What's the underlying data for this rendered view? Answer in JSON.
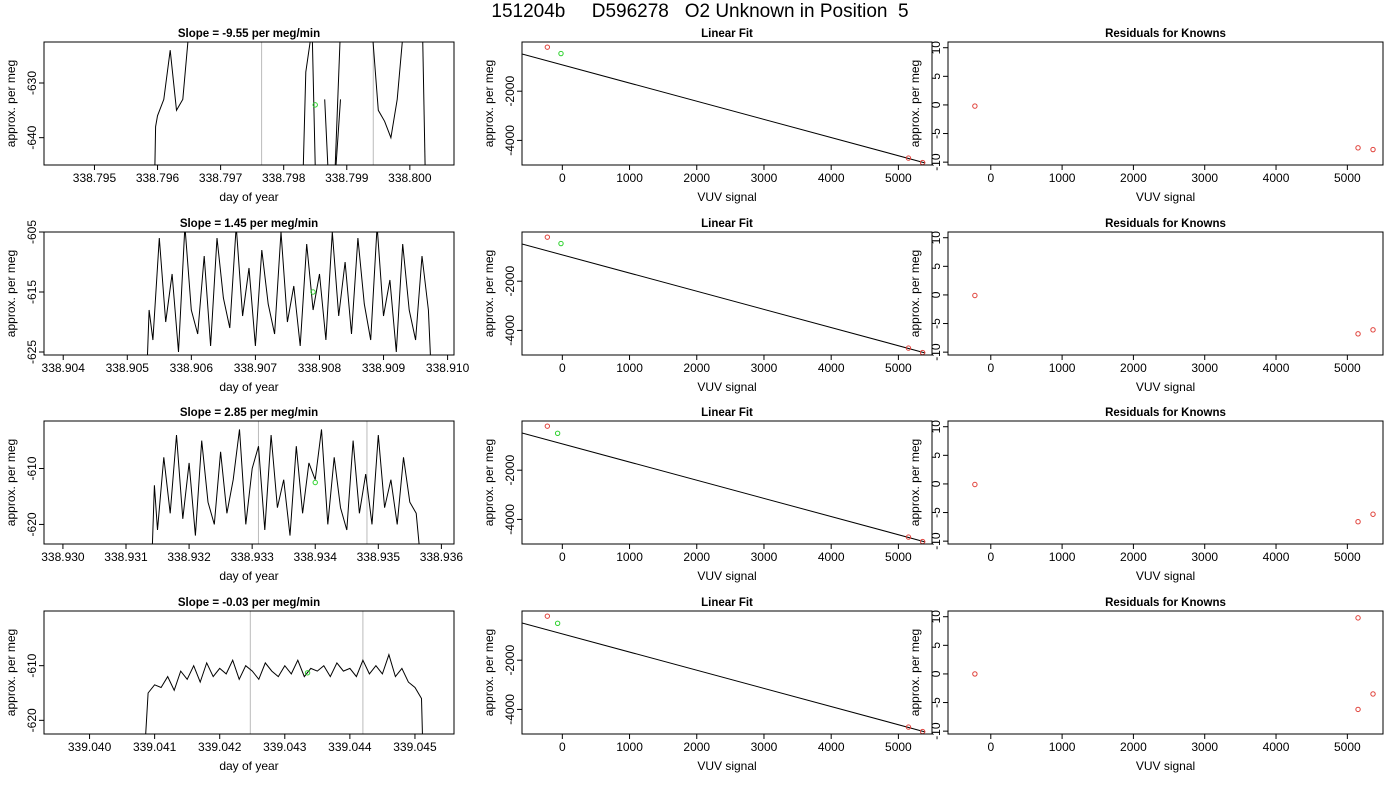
{
  "figure": {
    "title": "151204b     D596278   O2 Unknown in Position  5"
  },
  "colors": {
    "trace": "#000000",
    "known_points": "#e0413a",
    "unknown_points": "#2fd22f",
    "reference_lines": "#bbbbbb"
  },
  "chart_data": [
    {
      "type": "line",
      "row": 1,
      "col": 1,
      "title": "Slope =  -9.55  per meg/min",
      "xlabel": "day of year",
      "ylabel": "approx. per meg",
      "xlim": [
        338.7942,
        338.8007
      ],
      "ylim": [
        -645,
        -622.5
      ],
      "xticks": [
        "338.795",
        "338.796",
        "338.797",
        "338.798",
        "338.799",
        "338.800"
      ],
      "yticks": [
        "-630",
        "-640"
      ],
      "vlines": [
        338.79765,
        338.79942
      ],
      "series": [
        {
          "x": [
            338.79595,
            338.79597,
            338.796,
            338.7961,
            338.7962,
            338.7963,
            338.7964,
            338.7965
          ],
          "y": [
            -650,
            -638,
            -636,
            -633,
            -624,
            -635,
            -633,
            -620
          ]
        },
        {
          "x": [
            338.7983,
            338.79835,
            338.79845,
            338.7985,
            338.7986
          ],
          "y": [
            -650,
            -628,
            -620,
            -645,
            -650
          ]
        },
        {
          "x": [
            338.79865,
            338.79872,
            338.7988,
            338.7989
          ],
          "y": [
            -633,
            -650,
            -650,
            -633
          ]
        },
        {
          "x": [
            338.7988,
            338.7989
          ],
          "y": [
            -650,
            -620
          ]
        },
        {
          "x": [
            338.7994,
            338.7995,
            338.7996,
            338.7997,
            338.7998,
            338.7999
          ],
          "y": [
            -620,
            -635,
            -637,
            -640,
            -633,
            -620
          ]
        },
        {
          "x": [
            338.8002,
            338.80025
          ],
          "y": [
            -620,
            -650
          ]
        }
      ],
      "points": [
        {
          "x": 338.7985,
          "y": -634
        }
      ]
    },
    {
      "type": "scatter",
      "row": 1,
      "col": 2,
      "title": "Linear Fit",
      "xlabel": "VUV signal",
      "ylabel": "approx. per meg",
      "xlim": [
        -600,
        5500
      ],
      "ylim": [
        -5000,
        0
      ],
      "xticks": [
        "0",
        "1000",
        "2000",
        "3000",
        "4000",
        "5000"
      ],
      "yticks": [
        "-2000",
        "-4000"
      ],
      "fit_line": {
        "x": [
          -600,
          5400
        ],
        "y": [
          -488,
          -4918
        ]
      },
      "known": [
        {
          "x": -223,
          "y": -209
        },
        {
          "x": 5150,
          "y": -4720
        },
        {
          "x": 5360,
          "y": -4900
        }
      ],
      "unknown": [
        {
          "x": -20,
          "y": -470
        }
      ]
    },
    {
      "type": "scatter",
      "row": 1,
      "col": 3,
      "title": "Residuals for Knowns",
      "xlabel": "VUV signal",
      "ylabel": "approx. per meg",
      "xlim": [
        -600,
        5500
      ],
      "ylim": [
        -10.5,
        11
      ],
      "xticks": [
        "0",
        "1000",
        "2000",
        "3000",
        "4000",
        "5000"
      ],
      "yticks": [
        "10",
        "5",
        "0",
        "-5",
        "-10"
      ],
      "known": [
        {
          "x": -223,
          "y": -0.2
        },
        {
          "x": 5150,
          "y": -7.5
        },
        {
          "x": 5360,
          "y": -7.8
        }
      ]
    },
    {
      "type": "line",
      "row": 2,
      "col": 1,
      "title": "Slope =  1.45  per meg/min",
      "xlabel": "day of year",
      "ylabel": "approx. per meg",
      "xlim": [
        338.9037,
        338.9101
      ],
      "ylim": [
        -625.5,
        -605
      ],
      "xticks": [
        "338.904",
        "338.905",
        "338.906",
        "338.907",
        "338.908",
        "338.909",
        "338.910"
      ],
      "yticks": [
        "-605",
        "-615",
        "-625"
      ],
      "series": [
        {
          "x": [
            338.9053,
            338.90534,
            338.9054,
            338.9055,
            338.9056,
            338.9057,
            338.9058,
            338.9059,
            338.906,
            338.9061,
            338.9062,
            338.9063,
            338.9064,
            338.9065,
            338.9066,
            338.9067,
            338.9068,
            338.9069,
            338.907,
            338.9071,
            338.9072,
            338.9073,
            338.9074,
            338.9075,
            338.9076,
            338.9077,
            338.9078,
            338.9079,
            338.908,
            338.9081,
            338.9082,
            338.9083,
            338.9084,
            338.9085,
            338.9086,
            338.9087,
            338.9088,
            338.9089,
            338.909,
            338.9091,
            338.9092,
            338.9093,
            338.9094,
            338.9095,
            338.9096,
            338.9097,
            338.90975
          ],
          "y": [
            -630,
            -618,
            -623,
            -606,
            -620,
            -612,
            -625,
            -604,
            -618,
            -622,
            -609,
            -624,
            -606,
            -616,
            -621,
            -604,
            -619,
            -611,
            -624,
            -608,
            -617,
            -622,
            -605,
            -620,
            -614,
            -624,
            -607,
            -618,
            -612,
            -623,
            -605,
            -619,
            -610,
            -622,
            -606,
            -617,
            -623,
            -604,
            -619,
            -613,
            -625,
            -607,
            -618,
            -623,
            -609,
            -618,
            -630
          ]
        }
      ],
      "points": [
        {
          "x": 338.9079,
          "y": -615
        }
      ]
    },
    {
      "type": "scatter",
      "row": 2,
      "col": 2,
      "title": "Linear Fit",
      "xlabel": "VUV signal",
      "ylabel": "approx. per meg",
      "xlim": [
        -600,
        5500
      ],
      "ylim": [
        -5000,
        0
      ],
      "xticks": [
        "0",
        "1000",
        "2000",
        "3000",
        "4000",
        "5000"
      ],
      "yticks": [
        "-2000",
        "-4000"
      ],
      "fit_line": {
        "x": [
          -600,
          5400
        ],
        "y": [
          -488,
          -4918
        ]
      },
      "known": [
        {
          "x": -223,
          "y": -209
        },
        {
          "x": 5150,
          "y": -4720
        },
        {
          "x": 5360,
          "y": -4900
        }
      ],
      "unknown": [
        {
          "x": -20,
          "y": -470
        }
      ]
    },
    {
      "type": "scatter",
      "row": 2,
      "col": 3,
      "title": "Residuals for Knowns",
      "xlabel": "VUV signal",
      "ylabel": "approx. per meg",
      "xlim": [
        -600,
        5500
      ],
      "ylim": [
        -10.5,
        11
      ],
      "xticks": [
        "0",
        "1000",
        "2000",
        "3000",
        "4000",
        "5000"
      ],
      "yticks": [
        "10",
        "5",
        "0",
        "-5",
        "-10"
      ],
      "known": [
        {
          "x": -223,
          "y": -0.1
        },
        {
          "x": 5150,
          "y": -6.8
        },
        {
          "x": 5360,
          "y": -6.1
        }
      ]
    },
    {
      "type": "line",
      "row": 3,
      "col": 1,
      "title": "Slope =  2.85  per meg/min",
      "xlabel": "day of year",
      "ylabel": "approx. per meg",
      "xlim": [
        338.9297,
        338.9362
      ],
      "ylim": [
        -623.5,
        -601.5
      ],
      "xticks": [
        "338.930",
        "338.931",
        "338.932",
        "338.933",
        "338.934",
        "338.935",
        "338.936"
      ],
      "yticks": [
        "-610",
        "-620"
      ],
      "vlines": [
        338.9331,
        338.93482
      ],
      "series": [
        {
          "x": [
            338.9314,
            338.93145,
            338.9315,
            338.9316,
            338.9317,
            338.9318,
            338.9319,
            338.932,
            338.9321,
            338.9322,
            338.9323,
            338.9324,
            338.9325,
            338.9326,
            338.9327,
            338.9328,
            338.9329,
            338.933,
            338.9331,
            338.9332,
            338.9333,
            338.9334,
            338.9335,
            338.9336,
            338.9337,
            338.9338,
            338.9339,
            338.934,
            338.9341,
            338.9342,
            338.9343,
            338.9344,
            338.9345,
            338.9346,
            338.9347,
            338.9348,
            338.9349,
            338.935,
            338.9351,
            338.9352,
            338.9353,
            338.9354,
            338.9355,
            338.9356,
            338.9357
          ],
          "y": [
            -630,
            -613,
            -621,
            -608,
            -618,
            -604,
            -619,
            -609,
            -622,
            -605,
            -616,
            -620,
            -607,
            -618,
            -612,
            -603,
            -620,
            -610,
            -606,
            -621,
            -604,
            -617,
            -612,
            -622,
            -606,
            -618,
            -609,
            -612,
            -603,
            -620,
            -608,
            -617,
            -621,
            -605,
            -618,
            -611,
            -620,
            -604,
            -617,
            -612,
            -620,
            -608,
            -616,
            -618,
            -630
          ]
        }
      ],
      "points": [
        {
          "x": 338.934,
          "y": -612.5
        }
      ]
    },
    {
      "type": "scatter",
      "row": 3,
      "col": 2,
      "title": "Linear Fit",
      "xlabel": "VUV signal",
      "ylabel": "approx. per meg",
      "xlim": [
        -600,
        5500
      ],
      "ylim": [
        -5000,
        0
      ],
      "xticks": [
        "0",
        "1000",
        "2000",
        "3000",
        "4000",
        "5000"
      ],
      "yticks": [
        "-2000",
        "-4000"
      ],
      "fit_line": {
        "x": [
          -600,
          5400
        ],
        "y": [
          -488,
          -4918
        ]
      },
      "known": [
        {
          "x": -223,
          "y": -209
        },
        {
          "x": 5150,
          "y": -4720
        },
        {
          "x": 5360,
          "y": -4900
        }
      ],
      "unknown": [
        {
          "x": -70,
          "y": -500
        }
      ]
    },
    {
      "type": "scatter",
      "row": 3,
      "col": 3,
      "title": "Residuals for Knowns",
      "xlabel": "VUV signal",
      "ylabel": "approx. per meg",
      "xlim": [
        -600,
        5500
      ],
      "ylim": [
        -10.5,
        11
      ],
      "xticks": [
        "0",
        "1000",
        "2000",
        "3000",
        "4000",
        "5000"
      ],
      "yticks": [
        "10",
        "5",
        "0",
        "-5",
        "-10"
      ],
      "known": [
        {
          "x": -223,
          "y": -0.1
        },
        {
          "x": 5150,
          "y": -6.6
        },
        {
          "x": 5360,
          "y": -5.3
        }
      ]
    },
    {
      "type": "line",
      "row": 4,
      "col": 1,
      "title": "Slope =  -0.03  per meg/min",
      "xlabel": "day of year",
      "ylabel": "approx. per meg",
      "xlim": [
        339.0393,
        339.0456
      ],
      "ylim": [
        -622.5,
        -600
      ],
      "xticks": [
        "339.040",
        "339.041",
        "339.042",
        "339.043",
        "339.044",
        "339.045"
      ],
      "yticks": [
        "-610",
        "-620"
      ],
      "vlines": [
        339.04247,
        339.0442
      ],
      "series": [
        {
          "x": [
            339.04085,
            339.0409,
            339.041,
            339.0411,
            339.0412,
            339.0413,
            339.0414,
            339.0415,
            339.0416,
            339.0417,
            339.0418,
            339.0419,
            339.042,
            339.0421,
            339.0422,
            339.0423,
            339.0424,
            339.0425,
            339.0426,
            339.0427,
            339.0428,
            339.0429,
            339.043,
            339.0431,
            339.0432,
            339.0433,
            339.0434,
            339.0435,
            339.0436,
            339.0437,
            339.0438,
            339.0439,
            339.044,
            339.0441,
            339.0442,
            339.0443,
            339.0444,
            339.0445,
            339.0446,
            339.0447,
            339.0448,
            339.0449,
            339.045,
            339.0451,
            339.04512
          ],
          "y": [
            -625,
            -615,
            -613.5,
            -614,
            -612,
            -614.5,
            -611,
            -612.5,
            -610,
            -613,
            -609.5,
            -612,
            -610.5,
            -611.5,
            -609,
            -612.5,
            -610,
            -611,
            -612.5,
            -609.5,
            -611,
            -612,
            -610,
            -611.5,
            -609,
            -612,
            -610.5,
            -611,
            -610,
            -612,
            -609.5,
            -611,
            -610.5,
            -612,
            -609,
            -611.5,
            -610,
            -611.5,
            -608,
            -612,
            -610.5,
            -613,
            -614,
            -616,
            -625
          ]
        }
      ],
      "points": [
        {
          "x": 339.04335,
          "y": -611.3
        }
      ]
    },
    {
      "type": "scatter",
      "row": 4,
      "col": 2,
      "title": "Linear Fit",
      "xlabel": "VUV signal",
      "ylabel": "approx. per meg",
      "xlim": [
        -600,
        5500
      ],
      "ylim": [
        -5000,
        0
      ],
      "xticks": [
        "0",
        "1000",
        "2000",
        "3000",
        "4000",
        "5000"
      ],
      "yticks": [
        "-2000",
        "-4000"
      ],
      "fit_line": {
        "x": [
          -600,
          5400
        ],
        "y": [
          -488,
          -4918
        ]
      },
      "known": [
        {
          "x": -223,
          "y": -209
        },
        {
          "x": 5150,
          "y": -4720
        },
        {
          "x": 5360,
          "y": -4900
        }
      ],
      "unknown": [
        {
          "x": -70,
          "y": -500
        }
      ]
    },
    {
      "type": "scatter",
      "row": 4,
      "col": 3,
      "title": "Residuals for Knowns",
      "xlabel": "VUV signal",
      "ylabel": "approx. per meg",
      "xlim": [
        -600,
        5500
      ],
      "ylim": [
        -10.5,
        11
      ],
      "xticks": [
        "0",
        "1000",
        "2000",
        "3000",
        "4000",
        "5000"
      ],
      "yticks": [
        "10",
        "5",
        "0",
        "-5",
        "-10"
      ],
      "known": [
        {
          "x": -223,
          "y": 0.0
        },
        {
          "x": 5150,
          "y": 9.8
        },
        {
          "x": 5150,
          "y": -6.2
        },
        {
          "x": 5360,
          "y": -3.5
        }
      ]
    }
  ]
}
